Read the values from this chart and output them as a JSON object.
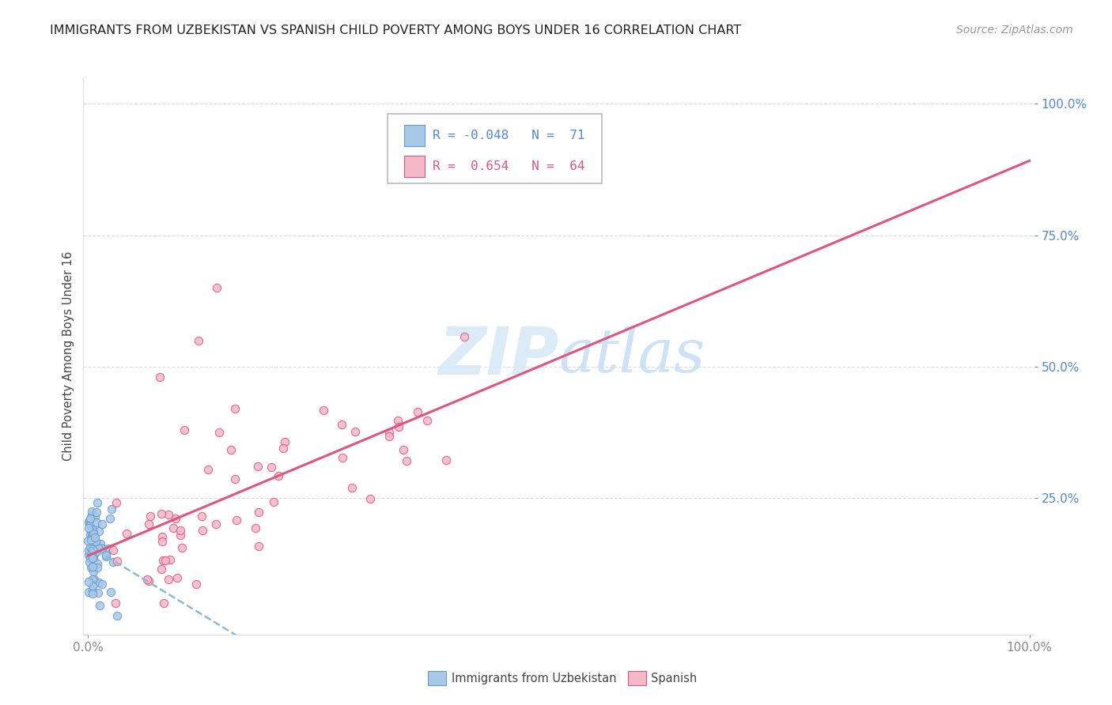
{
  "title": "IMMIGRANTS FROM UZBEKISTAN VS SPANISH CHILD POVERTY AMONG BOYS UNDER 16 CORRELATION CHART",
  "source": "Source: ZipAtlas.com",
  "ylabel": "Child Poverty Among Boys Under 16",
  "r_uzbekistan": -0.048,
  "n_uzbekistan": 71,
  "r_spanish": 0.654,
  "n_spanish": 64,
  "legend_label_1": "Immigrants from Uzbekistan",
  "legend_label_2": "Spanish",
  "blue_color": "#a8c8e8",
  "blue_edge_color": "#6699cc",
  "pink_color": "#f4b8c8",
  "pink_edge_color": "#e05580",
  "blue_line_color": "#88bbdd",
  "pink_line_color": "#e05580",
  "background_color": "#ffffff",
  "grid_color": "#cccccc",
  "watermark_color": "#d8eaf8",
  "title_color": "#222222",
  "ylabel_color": "#444444",
  "tick_color_right": "#5588cc",
  "tick_color_bottom": "#888888",
  "source_color": "#999999"
}
